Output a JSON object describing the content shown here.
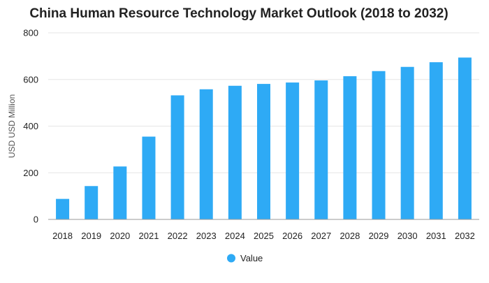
{
  "chart_data": {
    "type": "bar",
    "title": "China Human Resource Technology Market Outlook (2018 to 2032)",
    "xlabel": "",
    "ylabel": "USD USD Million",
    "ylim": [
      0,
      800
    ],
    "yticks": [
      0,
      200,
      400,
      600,
      800
    ],
    "grid": true,
    "legend_position": "bottom",
    "categories": [
      "2018",
      "2019",
      "2020",
      "2021",
      "2022",
      "2023",
      "2024",
      "2025",
      "2026",
      "2027",
      "2028",
      "2029",
      "2030",
      "2031",
      "2032"
    ],
    "series": [
      {
        "name": "Value",
        "color": "#2eaaf5",
        "values": [
          88,
          143,
          227,
          355,
          532,
          558,
          573,
          581,
          587,
          596,
          614,
          636,
          654,
          674,
          694
        ]
      }
    ]
  }
}
